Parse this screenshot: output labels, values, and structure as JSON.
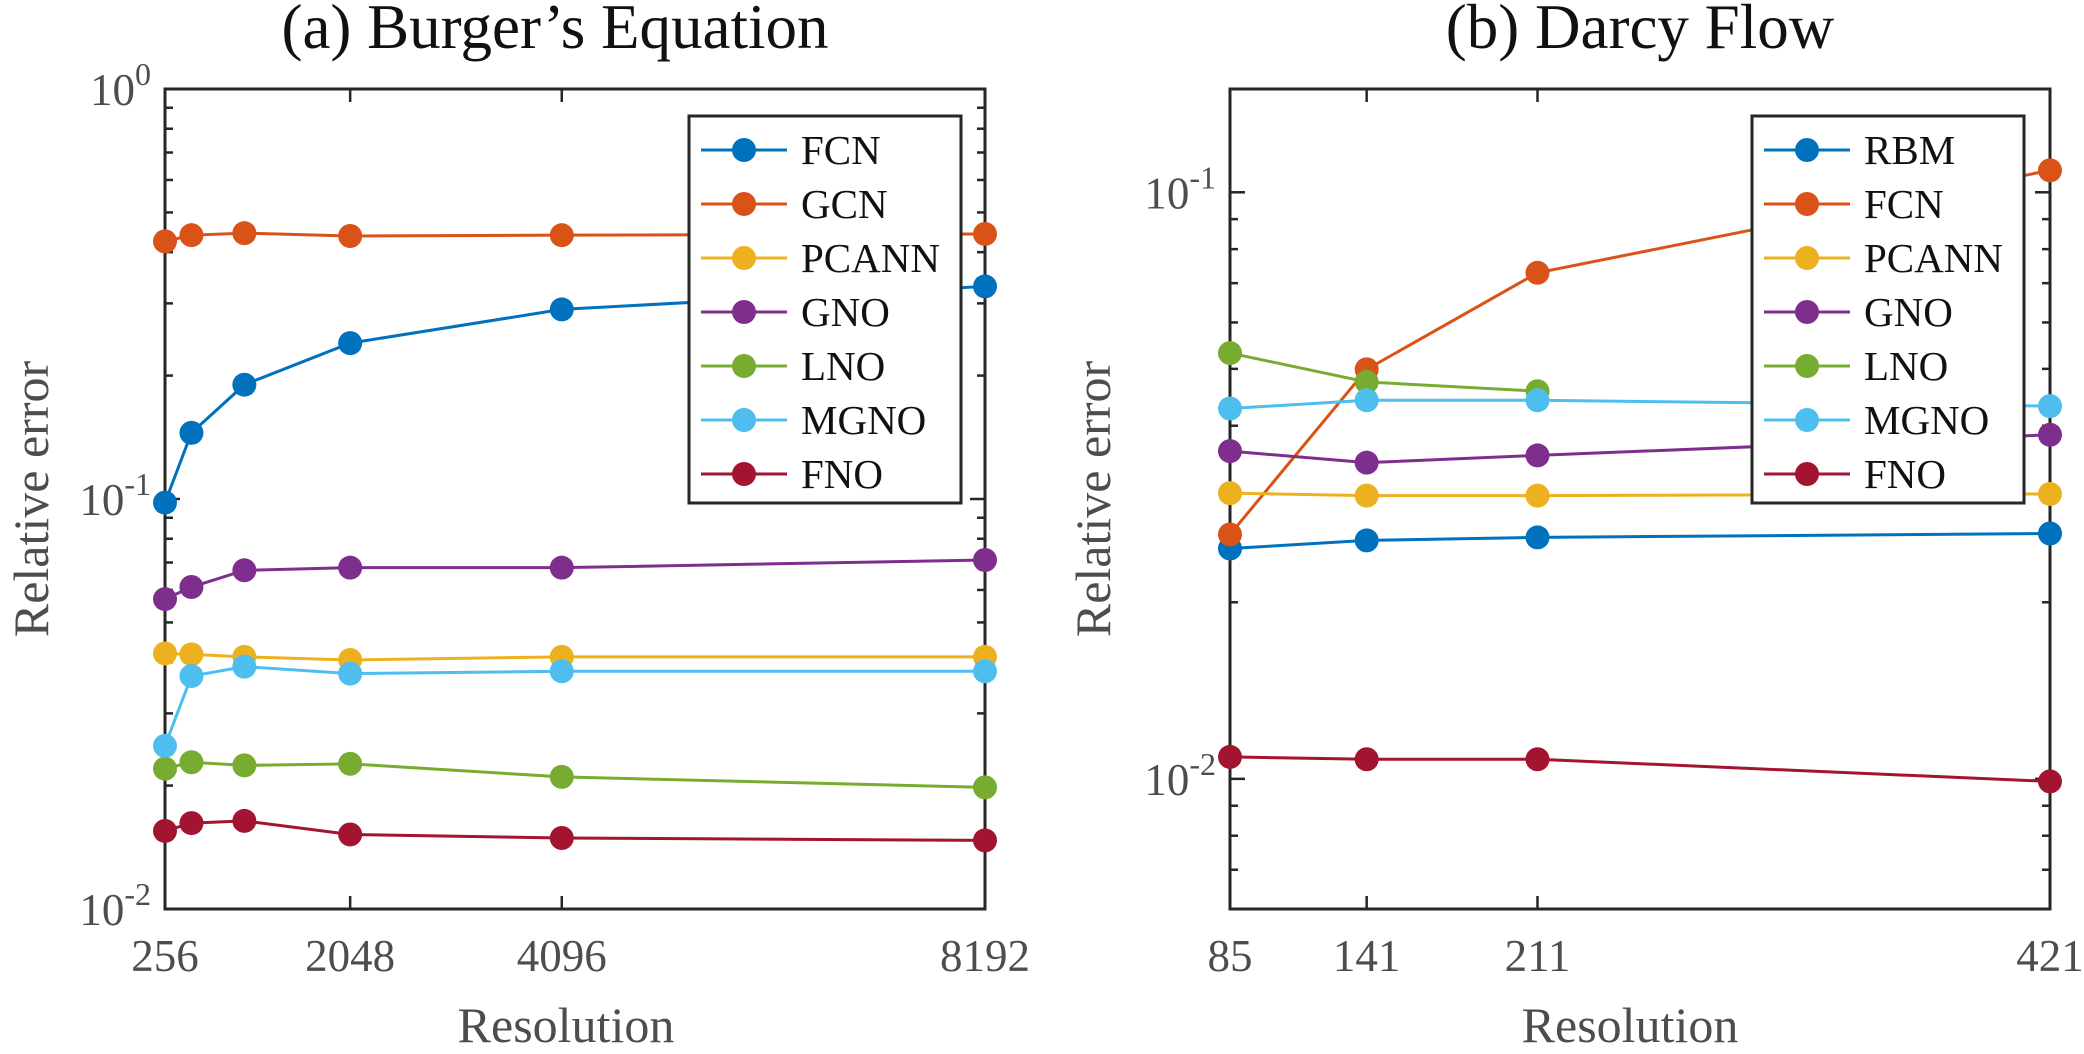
{
  "chart_data": [
    {
      "type": "line",
      "title": "(a) Burger’s Equation",
      "xlabel": "Resolution",
      "ylabel": "Relative error",
      "y_scale": "log",
      "ylim": [
        0.01,
        1
      ],
      "xlim": [
        256,
        8192
      ],
      "x_ticks": [
        256,
        2048,
        4096,
        8192
      ],
      "y_ticks": [
        0.01,
        0.1,
        1
      ],
      "y_tick_labels": [
        {
          "base": "10",
          "exp": "-2"
        },
        {
          "base": "10",
          "exp": "-1"
        },
        {
          "base": "10",
          "exp": "0"
        }
      ],
      "x": [
        256,
        512,
        1024,
        2048,
        4096,
        8192
      ],
      "legend_position": "top-right",
      "grid": false,
      "series": [
        {
          "name": "FCN",
          "color": "#0072BD",
          "values": [
            0.098,
            0.145,
            0.19,
            0.24,
            0.29,
            0.33
          ],
          "points": [
            [
              256,
              0.098
            ],
            [
              512,
              0.145
            ],
            [
              1024,
              0.19
            ],
            [
              2048,
              0.24
            ],
            [
              4096,
              0.29
            ],
            [
              8192,
              0.33
            ]
          ]
        },
        {
          "name": "GCN",
          "color": "#D95319",
          "values": [
            0.425,
            0.44,
            0.445,
            0.438,
            0.44,
            0.443
          ],
          "points": [
            [
              256,
              0.425
            ],
            [
              512,
              0.44
            ],
            [
              1024,
              0.445
            ],
            [
              2048,
              0.438
            ],
            [
              4096,
              0.44
            ],
            [
              8192,
              0.443
            ]
          ]
        },
        {
          "name": "PCANN",
          "color": "#EDB120",
          "values": [
            0.042,
            0.0418,
            0.0412,
            0.0405,
            0.0412,
            0.0412
          ],
          "points": [
            [
              256,
              0.042
            ],
            [
              512,
              0.0418
            ],
            [
              1024,
              0.0412
            ],
            [
              2048,
              0.0405
            ],
            [
              4096,
              0.0412
            ],
            [
              8192,
              0.0412
            ]
          ]
        },
        {
          "name": "GNO",
          "color": "#7E2F8E",
          "values": [
            0.057,
            0.061,
            0.067,
            0.068,
            0.068,
            0.071
          ],
          "points": [
            [
              256,
              0.057
            ],
            [
              512,
              0.061
            ],
            [
              1024,
              0.067
            ],
            [
              2048,
              0.068
            ],
            [
              4096,
              0.068
            ],
            [
              8192,
              0.071
            ]
          ]
        },
        {
          "name": "LNO",
          "color": "#77AC30",
          "values": [
            0.022,
            0.0228,
            0.0224,
            0.0226,
            0.021,
            0.0198
          ],
          "points": [
            [
              256,
              0.022
            ],
            [
              512,
              0.0228
            ],
            [
              1024,
              0.0224
            ],
            [
              2048,
              0.0226
            ],
            [
              4096,
              0.021
            ],
            [
              8192,
              0.0198
            ]
          ]
        },
        {
          "name": "MGNO",
          "color": "#4DBEEE",
          "values": [
            0.025,
            0.037,
            0.039,
            0.0375,
            0.038,
            0.038
          ],
          "points": [
            [
              256,
              0.025
            ],
            [
              512,
              0.037
            ],
            [
              1024,
              0.039
            ],
            [
              2048,
              0.0375
            ],
            [
              4096,
              0.038
            ],
            [
              8192,
              0.038
            ]
          ]
        },
        {
          "name": "FNO",
          "color": "#A2142F",
          "values": [
            0.0155,
            0.0162,
            0.0164,
            0.0152,
            0.0149,
            0.0147
          ],
          "points": [
            [
              256,
              0.0155
            ],
            [
              512,
              0.0162
            ],
            [
              1024,
              0.0164
            ],
            [
              2048,
              0.0152
            ],
            [
              4096,
              0.0149
            ],
            [
              8192,
              0.0147
            ]
          ]
        }
      ]
    },
    {
      "type": "line",
      "title": "(b) Darcy Flow",
      "xlabel": "Resolution",
      "ylabel": "Relative error",
      "y_scale": "log",
      "ylim": [
        0.006,
        0.15
      ],
      "xlim": [
        85,
        421
      ],
      "x_ticks": [
        85,
        141,
        211,
        421
      ],
      "y_ticks": [
        0.01,
        0.1
      ],
      "y_tick_labels": [
        {
          "base": "10",
          "exp": "-2"
        },
        {
          "base": "10",
          "exp": "-1"
        }
      ],
      "legend_position": "top-right",
      "grid": false,
      "series": [
        {
          "name": "RBM",
          "color": "#0072BD",
          "points": [
            [
              85,
              0.0247
            ],
            [
              141,
              0.0255
            ],
            [
              211,
              0.0258
            ],
            [
              421,
              0.0262
            ]
          ]
        },
        {
          "name": "FCN",
          "color": "#D95319",
          "points": [
            [
              85,
              0.0261
            ],
            [
              141,
              0.0499
            ],
            [
              211,
              0.0729
            ],
            [
              421,
              0.109
            ]
          ]
        },
        {
          "name": "PCANN",
          "color": "#EDB120",
          "points": [
            [
              85,
              0.0307
            ],
            [
              141,
              0.0304
            ],
            [
              211,
              0.0304
            ],
            [
              421,
              0.0306
            ]
          ]
        },
        {
          "name": "GNO",
          "color": "#7E2F8E",
          "points": [
            [
              85,
              0.0362
            ],
            [
              141,
              0.0346
            ],
            [
              211,
              0.0356
            ],
            [
              421,
              0.0386
            ]
          ]
        },
        {
          "name": "LNO",
          "color": "#77AC30",
          "points": [
            [
              85,
              0.0532
            ],
            [
              141,
              0.0475
            ],
            [
              211,
              0.0458
            ]
          ]
        },
        {
          "name": "MGNO",
          "color": "#4DBEEE",
          "points": [
            [
              85,
              0.0428
            ],
            [
              141,
              0.0442
            ],
            [
              211,
              0.0442
            ],
            [
              421,
              0.0432
            ]
          ]
        },
        {
          "name": "FNO",
          "color": "#A2142F",
          "points": [
            [
              85,
              0.0109
            ],
            [
              141,
              0.0108
            ],
            [
              211,
              0.0108
            ],
            [
              421,
              0.0099
            ]
          ]
        }
      ]
    }
  ]
}
